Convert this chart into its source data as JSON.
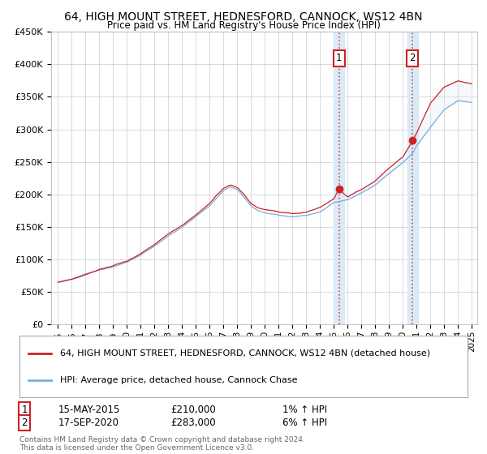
{
  "title": "64, HIGH MOUNT STREET, HEDNESFORD, CANNOCK, WS12 4BN",
  "subtitle": "Price paid vs. HM Land Registry's House Price Index (HPI)",
  "ylim": [
    0,
    450000
  ],
  "yticks": [
    0,
    50000,
    100000,
    150000,
    200000,
    250000,
    300000,
    350000,
    400000,
    450000
  ],
  "ytick_labels": [
    "£0",
    "£50K",
    "£100K",
    "£150K",
    "£200K",
    "£250K",
    "£300K",
    "£350K",
    "£400K",
    "£450K"
  ],
  "hpi_color": "#7aabdb",
  "house_color": "#cc2222",
  "shade_color": "#daeaf7",
  "legend_house": "64, HIGH MOUNT STREET, HEDNESFORD, CANNOCK, WS12 4BN (detached house)",
  "legend_hpi": "HPI: Average price, detached house, Cannock Chase",
  "t1_year_f": 2015.37,
  "t2_year_f": 2020.71,
  "transaction1_date": "15-MAY-2015",
  "transaction1_price": "£210,000",
  "transaction1_pct": "1% ↑ HPI",
  "transaction2_date": "17-SEP-2020",
  "transaction2_price": "£283,000",
  "transaction2_pct": "6% ↑ HPI",
  "footer": "Contains HM Land Registry data © Crown copyright and database right 2024.\nThis data is licensed under the Open Government Licence v3.0.",
  "background_color": "#ffffff",
  "grid_color": "#cccccc",
  "anchors_hpi_x": [
    1995,
    1996,
    1997,
    1998,
    1999,
    2000,
    2001,
    2002,
    2003,
    2004,
    2005,
    2006,
    2007,
    2007.5,
    2008,
    2008.5,
    2009,
    2009.5,
    2010,
    2011,
    2012,
    2013,
    2014,
    2015,
    2016,
    2017,
    2018,
    2019,
    2020,
    2020.7,
    2021,
    2022,
    2023,
    2024,
    2025
  ],
  "anchors_hpi_y": [
    65000,
    70000,
    78000,
    85000,
    90000,
    97000,
    108000,
    122000,
    138000,
    152000,
    168000,
    185000,
    208000,
    214000,
    210000,
    198000,
    185000,
    178000,
    175000,
    172000,
    170000,
    172000,
    178000,
    192000,
    197000,
    208000,
    220000,
    238000,
    255000,
    268000,
    280000,
    308000,
    335000,
    348000,
    345000
  ],
  "anchors_house_x": [
    1995,
    1996,
    1997,
    1998,
    1999,
    2000,
    2001,
    2002,
    2003,
    2004,
    2005,
    2006,
    2007,
    2007.5,
    2008,
    2008.5,
    2009,
    2009.5,
    2010,
    2011,
    2012,
    2013,
    2014,
    2015,
    2015.37,
    2016,
    2017,
    2018,
    2019,
    2020,
    2020.71,
    2021,
    2022,
    2023,
    2024,
    2025
  ],
  "anchors_house_y": [
    65000,
    70000,
    78000,
    86000,
    91000,
    98000,
    110000,
    124000,
    140000,
    154000,
    170000,
    188000,
    210000,
    215000,
    211000,
    200000,
    186000,
    179000,
    176000,
    173000,
    171000,
    173000,
    180000,
    194000,
    210000,
    198000,
    210000,
    222000,
    242000,
    258000,
    283000,
    295000,
    340000,
    365000,
    375000,
    370000
  ]
}
